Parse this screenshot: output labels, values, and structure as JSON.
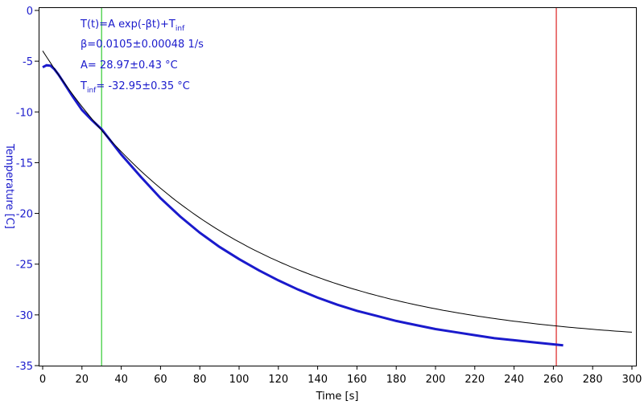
{
  "chart_data": {
    "type": "scatter",
    "xlabel": "Time [s]",
    "ylabel": "Temperature [C]",
    "xlim": [
      0,
      300
    ],
    "ylim": [
      -35,
      0
    ],
    "x_ticks": [
      0,
      20,
      40,
      60,
      80,
      100,
      120,
      140,
      160,
      180,
      200,
      220,
      240,
      260,
      280,
      300
    ],
    "y_ticks": [
      0,
      -5,
      -10,
      -15,
      -20,
      -25,
      -30,
      -35
    ],
    "grid": false,
    "colors": {
      "data": "#1a1acc",
      "fit": "#000000",
      "start_marker": "#33cc33",
      "end_marker": "#dd2222",
      "axis_text": "#1a1acc",
      "axes": "#000000"
    },
    "fit": {
      "model": "A*exp(-beta*t)+T_inf",
      "A": 28.97,
      "beta": 0.0105,
      "T_inf": -32.95,
      "x_range": [
        0,
        300
      ]
    },
    "series": [
      {
        "x": [
          0,
          2,
          4,
          6,
          8,
          10,
          15,
          20,
          25,
          30,
          40,
          50,
          60,
          70,
          80,
          90,
          100,
          110,
          120,
          130,
          140,
          150,
          160,
          170,
          180,
          190,
          200,
          210,
          220,
          230,
          240,
          250,
          260,
          265
        ],
        "values": [
          -5.6,
          -5.4,
          -5.45,
          -5.8,
          -6.3,
          -6.9,
          -8.4,
          -9.8,
          -10.8,
          -11.7,
          -14.2,
          -16.4,
          -18.5,
          -20.3,
          -21.9,
          -23.3,
          -24.5,
          -25.6,
          -26.6,
          -27.5,
          -28.3,
          -29.0,
          -29.6,
          -30.1,
          -30.6,
          -31.0,
          -31.4,
          -31.7,
          -32.0,
          -32.3,
          -32.5,
          -32.7,
          -32.9,
          -33.0
        ]
      }
    ],
    "markers": {
      "start_x": 30,
      "end_x": 261.5
    }
  },
  "annotations": {
    "line1_main": "T(t)=A exp(-βt)+T",
    "line1_sub": "inf",
    "line2": "β=0.0105±0.00048 1/s",
    "line3": "A= 28.97±0.43 °C",
    "line4_main": "T",
    "line4_sub": "inf",
    "line4_rest": "= -32.95±0.35 °C"
  }
}
